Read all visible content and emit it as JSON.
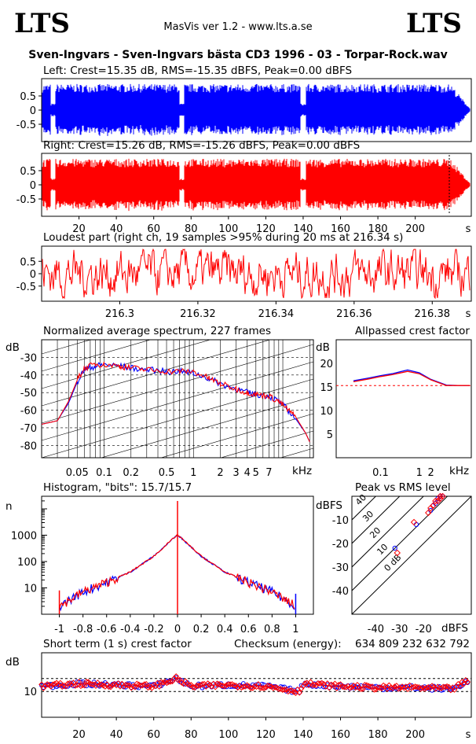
{
  "header": {
    "logo_left": "LTS",
    "logo_right": "LTS",
    "app": "MasVis ver 1.2 - www.lts.a.se",
    "track": "Sven-Ingvars - Sven-Ingvars bästa CD3 1996 - 03 - Torpar-Rock.wav"
  },
  "colors": {
    "left": "#0000ff",
    "right": "#ff0000",
    "axis": "#000000"
  },
  "chart_data": [
    {
      "type": "area",
      "title": "Left: Crest=15.35 dB, RMS=-15.35 dBFS, Peak=0.00 dBFS",
      "ylim": [
        -1,
        1
      ],
      "xlim": [
        0,
        230
      ],
      "yticks": [
        "0.5",
        "0",
        "-0.5"
      ],
      "series": [
        {
          "name": "Left",
          "crest_db": 15.35,
          "rms_dbfs": -15.35,
          "peak_dbfs": 0.0
        }
      ]
    },
    {
      "type": "area",
      "title": "Right: Crest=15.26 dB, RMS=-15.26 dBFS, Peak=0.00 dBFS",
      "ylim": [
        -1,
        1
      ],
      "xlim": [
        0,
        230
      ],
      "xticks": [
        20,
        40,
        60,
        80,
        100,
        120,
        140,
        160,
        180,
        200
      ],
      "xunit": "s",
      "yticks": [
        "0.5",
        "0",
        "-0.5"
      ],
      "series": [
        {
          "name": "Right",
          "crest_db": 15.26,
          "rms_dbfs": -15.26,
          "peak_dbfs": 0.0
        }
      ]
    },
    {
      "type": "line",
      "title": "Loudest part (right ch, 19 samples >95% during 20 ms at 216.34 s)",
      "xlim": [
        216.28,
        216.39
      ],
      "ylim": [
        -1,
        1
      ],
      "xticks": [
        "216.3",
        "216.32",
        "216.34",
        "216.36",
        "216.38"
      ],
      "xunit": "s",
      "yticks": [
        "0.5",
        "0",
        "-0.5"
      ]
    },
    {
      "type": "line",
      "title": "Normalized average spectrum, 227 frames",
      "ylabel": "dB",
      "yticks": [
        -30,
        -40,
        -50,
        -60,
        -70,
        -80
      ],
      "ylim": [
        -87,
        -20
      ],
      "xticks": [
        "0.05",
        "0.1",
        "0.2",
        "0.5",
        "1",
        "2",
        "3",
        "4",
        "5",
        "7"
      ],
      "xunit": "kHz",
      "x_khz": [
        0.02,
        0.03,
        0.04,
        0.05,
        0.06,
        0.08,
        0.1,
        0.15,
        0.2,
        0.3,
        0.5,
        0.7,
        1,
        1.5,
        2,
        3,
        4,
        5,
        7,
        9,
        11,
        14,
        18,
        20
      ],
      "series": [
        {
          "name": "Left",
          "values": [
            -68,
            -66,
            -56,
            -44,
            -37,
            -35,
            -34,
            -35,
            -36,
            -37,
            -38,
            -38,
            -39,
            -42,
            -45,
            -48,
            -50,
            -51,
            -52,
            -55,
            -59,
            -65,
            -73,
            -78
          ]
        },
        {
          "name": "Right",
          "values": [
            -68,
            -66,
            -55,
            -43,
            -36,
            -34,
            -34,
            -35,
            -36,
            -37,
            -38,
            -38,
            -38,
            -42,
            -45,
            -48,
            -50,
            -51,
            -52,
            -55,
            -59,
            -64,
            -73,
            -78
          ]
        }
      ]
    },
    {
      "type": "line",
      "title": "Allpassed crest factor",
      "ylabel": "dB",
      "yticks": [
        20,
        15,
        10,
        5
      ],
      "ylim": [
        0,
        25
      ],
      "xticks": [
        "0.1",
        "1",
        "2"
      ],
      "xunit": "kHz",
      "reference_db": 15.3,
      "x_khz": [
        0.02,
        0.05,
        0.1,
        0.2,
        0.5,
        1,
        2,
        5,
        10,
        20
      ],
      "series": [
        {
          "name": "Left",
          "values": [
            16.3,
            16.9,
            17.4,
            17.8,
            18.6,
            18.0,
            16.6,
            15.4,
            15.3,
            15.3
          ]
        },
        {
          "name": "Right",
          "values": [
            16.1,
            16.7,
            17.2,
            17.6,
            18.3,
            17.8,
            16.5,
            15.3,
            15.3,
            15.3
          ]
        }
      ]
    },
    {
      "type": "line",
      "title": "Histogram, \"bits\": 15.7/15.7",
      "ylabel": "n",
      "yscale": "log",
      "yticks": [
        "1000",
        "100",
        "10"
      ],
      "ylim": [
        1,
        30000
      ],
      "xlim": [
        -1.15,
        1.15
      ],
      "xticks": [
        "-1",
        "-0.8",
        "-0.6",
        "-0.4",
        "-0.2",
        "0",
        "0.2",
        "0.4",
        "0.6",
        "0.8",
        "1"
      ],
      "x": [
        -1,
        -0.8,
        -0.6,
        -0.4,
        -0.2,
        0,
        0.2,
        0.4,
        0.6,
        0.8,
        1
      ],
      "series": [
        {
          "name": "Left",
          "values": [
            2,
            7,
            16,
            40,
            160,
            1050,
            160,
            40,
            16,
            7,
            2
          ]
        },
        {
          "name": "Right",
          "values": [
            2,
            7,
            16,
            40,
            160,
            1050,
            160,
            40,
            16,
            7,
            2
          ]
        }
      ]
    },
    {
      "type": "scatter",
      "title": "Peak vs RMS level",
      "ylabel": "dBFS",
      "xlabel": "dBFS",
      "xticks": [
        -40,
        -30,
        -20
      ],
      "yticks": [
        -10,
        -20,
        -30,
        -40
      ],
      "xlim": [
        -50,
        0
      ],
      "ylim": [
        -50,
        0
      ],
      "crest_lines": [
        "40",
        "30",
        "20",
        "10",
        "0 dB"
      ],
      "series": [
        {
          "name": "Left",
          "x": [
            -32,
            -23,
            -17,
            -16,
            -15,
            -14,
            -14,
            -13,
            -13,
            -12
          ],
          "y": [
            -22,
            -12,
            -6,
            -4,
            -3,
            -2,
            -1,
            -1,
            0,
            0
          ]
        },
        {
          "name": "Right",
          "x": [
            -31,
            -24,
            -18,
            -17,
            -16,
            -15,
            -14,
            -13,
            -13,
            -12
          ],
          "y": [
            -24,
            -11,
            -7,
            -5,
            -4,
            -2,
            -2,
            -1,
            0,
            0
          ]
        }
      ]
    },
    {
      "type": "scatter",
      "title": "Short term (1 s) crest factor",
      "ylabel": "dB",
      "yticks": [
        "10"
      ],
      "ylim": [
        0,
        25
      ],
      "xlim": [
        0,
        230
      ],
      "xticks": [
        20,
        40,
        60,
        80,
        100,
        120,
        140,
        160,
        180,
        200
      ],
      "xunit": "s",
      "reference_lines_db": [
        10,
        15
      ],
      "checksum_label": "Checksum (energy):",
      "checksum_value": "634 809 232 632 792",
      "series": [
        {
          "name": "Left",
          "x": [
            0,
            20,
            40,
            60,
            72,
            80,
            100,
            120,
            138,
            140,
            160,
            180,
            200,
            220,
            228
          ],
          "y": [
            12,
            13,
            12.5,
            12,
            15,
            12,
            12.5,
            12,
            10,
            13,
            12,
            11.5,
            11.5,
            11,
            14
          ]
        },
        {
          "name": "Right",
          "x": [
            0,
            20,
            40,
            60,
            72,
            80,
            100,
            120,
            138,
            140,
            160,
            180,
            200,
            220,
            228
          ],
          "y": [
            12,
            13,
            12.5,
            12,
            15,
            12,
            12.5,
            12,
            10,
            13,
            12,
            11.5,
            11.5,
            11,
            14
          ]
        }
      ]
    }
  ]
}
